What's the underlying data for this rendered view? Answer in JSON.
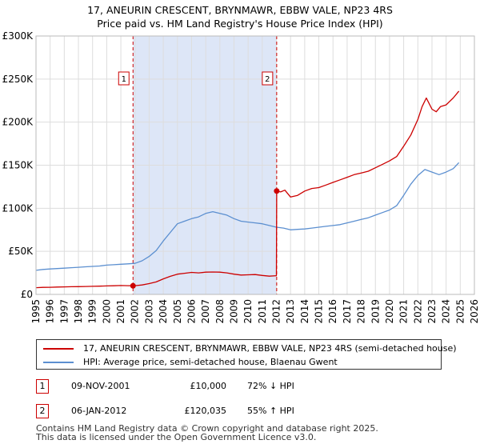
{
  "title_line1": "17, ANEURIN CRESCENT, BRYNMAWR, EBBW VALE, NP23 4RS",
  "title_line2": "Price paid vs. HM Land Registry's House Price Index (HPI)",
  "colors": {
    "property": "#cc0000",
    "hpi": "#5b8fd0",
    "shade": "#dde6f7",
    "grid": "#dddddd",
    "vline": "#cc0000"
  },
  "chart_data": {
    "type": "line",
    "x_range": [
      1995,
      2026
    ],
    "ylim": [
      0,
      300000
    ],
    "y_ticks": [
      0,
      50000,
      100000,
      150000,
      200000,
      250000,
      300000
    ],
    "y_tick_labels": [
      "£0",
      "£50K",
      "£100K",
      "£150K",
      "£200K",
      "£250K",
      "£300K"
    ],
    "x_ticks": [
      1995,
      1996,
      1997,
      1998,
      1999,
      2000,
      2001,
      2002,
      2003,
      2004,
      2005,
      2006,
      2007,
      2008,
      2009,
      2010,
      2011,
      2012,
      2013,
      2014,
      2015,
      2016,
      2017,
      2018,
      2019,
      2020,
      2021,
      2022,
      2023,
      2024,
      2025,
      2026
    ],
    "x_tick_labels": [
      "1995",
      "1996",
      "1997",
      "1998",
      "1999",
      "2000",
      "2001",
      "2002",
      "2003",
      "2004",
      "2005",
      "2006",
      "2007",
      "2008",
      "2009",
      "2010",
      "2011",
      "2012",
      "2013",
      "2014",
      "2015",
      "2016",
      "2017",
      "2018",
      "2019",
      "2020",
      "2021",
      "2022",
      "2023",
      "2024",
      "2025",
      "2026"
    ],
    "shaded_span": [
      2001.86,
      2012.02
    ],
    "markers": [
      {
        "label": "1",
        "x": 2001.86,
        "y": 10000
      },
      {
        "label": "2",
        "x": 2012.02,
        "y": 120035
      }
    ],
    "series": [
      {
        "name": "17, ANEURIN CRESCENT, BRYNMAWR, EBBW VALE, NP23 4RS (semi-detached house)",
        "color": "#cc0000",
        "x": [
          1995.0,
          1995.5,
          1996.0,
          1996.5,
          1997.0,
          1997.5,
          1998.0,
          1998.5,
          1999.0,
          1999.5,
          2000.0,
          2000.5,
          2001.0,
          2001.5,
          2001.86,
          2002.0,
          2002.5,
          2003.0,
          2003.5,
          2004.0,
          2004.5,
          2005.0,
          2005.5,
          2006.0,
          2006.5,
          2007.0,
          2007.5,
          2008.0,
          2008.5,
          2009.0,
          2009.5,
          2010.0,
          2010.5,
          2011.0,
          2011.5,
          2012.0,
          2012.02,
          2012.3,
          2012.6,
          2013.0,
          2013.5,
          2014.0,
          2014.5,
          2015.0,
          2015.5,
          2016.0,
          2016.5,
          2017.0,
          2017.5,
          2018.0,
          2018.5,
          2019.0,
          2019.5,
          2020.0,
          2020.5,
          2021.0,
          2021.5,
          2022.0,
          2022.3,
          2022.6,
          2023.0,
          2023.3,
          2023.6,
          2024.0,
          2024.5,
          2024.9
        ],
        "y": [
          7800,
          8200,
          8300,
          8500,
          8700,
          8900,
          9000,
          9200,
          9400,
          9600,
          9800,
          10000,
          10300,
          10100,
          10000,
          10100,
          11000,
          12500,
          14500,
          18000,
          21000,
          23500,
          24500,
          25500,
          25000,
          25800,
          26000,
          25800,
          25000,
          23500,
          22500,
          22800,
          23000,
          22000,
          21200,
          21700,
          120035,
          119000,
          121000,
          113000,
          115000,
          120000,
          123000,
          124000,
          127000,
          130000,
          133000,
          136000,
          139000,
          141000,
          143000,
          147000,
          151000,
          155000,
          160000,
          172000,
          185000,
          203000,
          218000,
          228000,
          215000,
          212000,
          218000,
          220000,
          228000,
          236000
        ]
      },
      {
        "name": "HPI: Average price, semi-detached house, Blaenau Gwent",
        "color": "#5b8fd0",
        "x": [
          1995.0,
          1995.5,
          1996.0,
          1996.5,
          1997.0,
          1997.5,
          1998.0,
          1998.5,
          1999.0,
          1999.5,
          2000.0,
          2000.5,
          2001.0,
          2001.5,
          2002.0,
          2002.5,
          2003.0,
          2003.5,
          2004.0,
          2004.5,
          2005.0,
          2005.5,
          2006.0,
          2006.5,
          2007.0,
          2007.5,
          2008.0,
          2008.5,
          2009.0,
          2009.5,
          2010.0,
          2010.5,
          2011.0,
          2011.5,
          2012.0,
          2012.5,
          2013.0,
          2013.5,
          2014.0,
          2014.5,
          2015.0,
          2015.5,
          2016.0,
          2016.5,
          2017.0,
          2017.5,
          2018.0,
          2018.5,
          2019.0,
          2019.5,
          2020.0,
          2020.5,
          2021.0,
          2021.5,
          2022.0,
          2022.5,
          2023.0,
          2023.5,
          2024.0,
          2024.5,
          2024.9
        ],
        "y": [
          28000,
          29000,
          29500,
          30000,
          30500,
          31000,
          31500,
          32000,
          32500,
          33000,
          34000,
          34500,
          35000,
          35500,
          36000,
          39000,
          44000,
          51000,
          62000,
          72000,
          82000,
          85000,
          88000,
          90000,
          94000,
          96000,
          94000,
          92000,
          88000,
          85000,
          84000,
          83000,
          82000,
          80000,
          78000,
          77000,
          75000,
          75500,
          76000,
          77000,
          78000,
          79000,
          80000,
          81000,
          83000,
          85000,
          87000,
          89000,
          92000,
          95000,
          98000,
          103000,
          115000,
          128000,
          138000,
          145000,
          142000,
          139000,
          142000,
          146000,
          153000
        ]
      }
    ]
  },
  "legend": {
    "property_label": "17, ANEURIN CRESCENT, BRYNMAWR, EBBW VALE, NP23 4RS (semi-detached house)",
    "hpi_label": "HPI: Average price, semi-detached house, Blaenau Gwent"
  },
  "transactions": [
    {
      "num": "1",
      "date": "09-NOV-2001",
      "price": "£10,000",
      "hpi": "72% ↓ HPI"
    },
    {
      "num": "2",
      "date": "06-JAN-2012",
      "price": "£120,035",
      "hpi": "55% ↑ HPI"
    }
  ],
  "footer_line1": "Contains HM Land Registry data © Crown copyright and database right 2025.",
  "footer_line2": "This data is licensed under the Open Government Licence v3.0."
}
